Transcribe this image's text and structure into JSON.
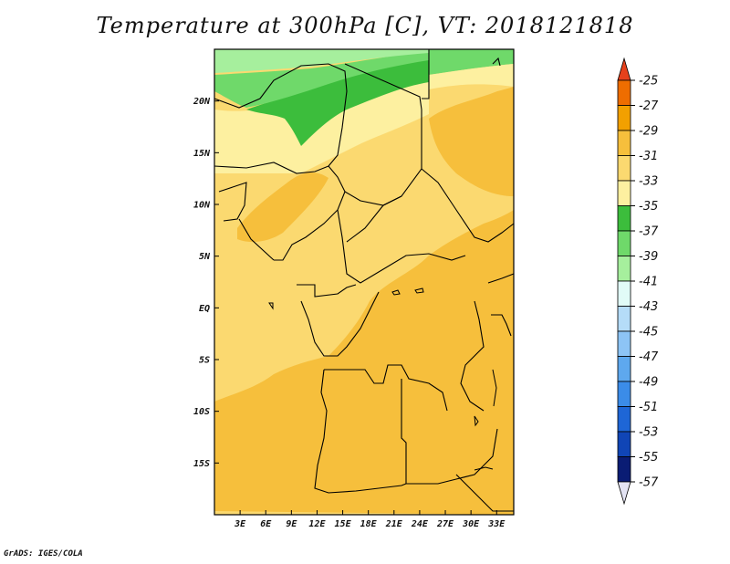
{
  "title": "Temperature at 300hPa [C], VT: 2018121818",
  "credit": "GrADS: IGES/COLA",
  "map": {
    "lat_labels": [
      "20N",
      "15N",
      "10N",
      "5N",
      "EQ",
      "5S",
      "10S",
      "15S"
    ],
    "lon_labels": [
      "3E",
      "6E",
      "9E",
      "12E",
      "15E",
      "18E",
      "21E",
      "24E",
      "27E",
      "30E",
      "33E"
    ],
    "lat_values": [
      20,
      15,
      10,
      5,
      0,
      -5,
      -10,
      -15
    ],
    "lon_values": [
      3,
      6,
      9,
      12,
      15,
      18,
      21,
      24,
      27,
      30,
      33
    ],
    "lat_range": [
      -20,
      25
    ],
    "lon_range": [
      0,
      35
    ]
  },
  "colorbar": {
    "labels": [
      "-25",
      "-27",
      "-29",
      "-31",
      "-33",
      "-35",
      "-37",
      "-39",
      "-41",
      "-43",
      "-45",
      "-47",
      "-49",
      "-51",
      "-53",
      "-55",
      "-57"
    ],
    "colors": [
      "#e6411c",
      "#ee6d00",
      "#f2a000",
      "#f6bf3c",
      "#fbd970",
      "#fdf0a0",
      "#3cbd3c",
      "#6fd96a",
      "#a6ef9d",
      "#e1fbf7",
      "#b5dcf8",
      "#8dc4f5",
      "#5ea8ee",
      "#3b8ce8",
      "#1e66d6",
      "#1045b6",
      "#0a1c74"
    ],
    "top_arrow_color": "#e6411c",
    "bottom_arrow_color": "#e3e3f3"
  },
  "fill_colors": {
    "lt31": "#fbd970",
    "lt29": "#f6bf3c",
    "lt33": "#fdf0a0",
    "green37": "#3cbd3c",
    "green39": "#6fd96a",
    "green41": "#a6ef9d"
  }
}
